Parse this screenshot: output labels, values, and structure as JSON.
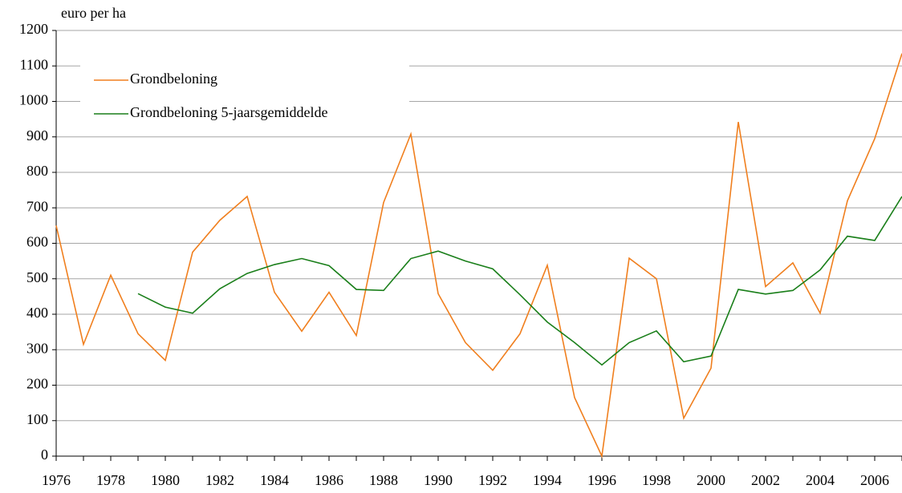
{
  "chart_data": {
    "type": "line",
    "y_label": "euro per ha",
    "categories": [
      "1976",
      null,
      "1978",
      null,
      "1980",
      null,
      "1982",
      null,
      "1984",
      null,
      "1986",
      null,
      "1988",
      null,
      "1990",
      null,
      "1992",
      null,
      "1994",
      null,
      "1996",
      null,
      "1998",
      null,
      "2000",
      null,
      "2002",
      null,
      "2004",
      null,
      "2006",
      null
    ],
    "series": [
      {
        "name": "Grondbeloning",
        "color": "#f07f1e",
        "values": [
          650,
          315,
          510,
          345,
          270,
          575,
          665,
          732,
          462,
          352,
          462,
          340,
          715,
          908,
          458,
          320,
          242,
          345,
          538,
          165,
          0,
          558,
          500,
          107,
          248,
          942,
          478,
          545,
          403,
          720,
          895,
          1135
        ]
      },
      {
        "name": "Grondbeloning 5-jaarsgemiddelde",
        "color": "#1a7f1a",
        "values": [
          null,
          null,
          null,
          458,
          420,
          403,
          472,
          515,
          540,
          557,
          537,
          470,
          467,
          557,
          578,
          550,
          528,
          455,
          378,
          320,
          257,
          320,
          353,
          266,
          282,
          470,
          457,
          467,
          525,
          620,
          608,
          732
        ]
      }
    ],
    "ylim": [
      0,
      1200
    ],
    "yticks": [
      0,
      100,
      200,
      300,
      400,
      500,
      600,
      700,
      800,
      900,
      1000,
      1100,
      1200
    ],
    "grid": true
  }
}
